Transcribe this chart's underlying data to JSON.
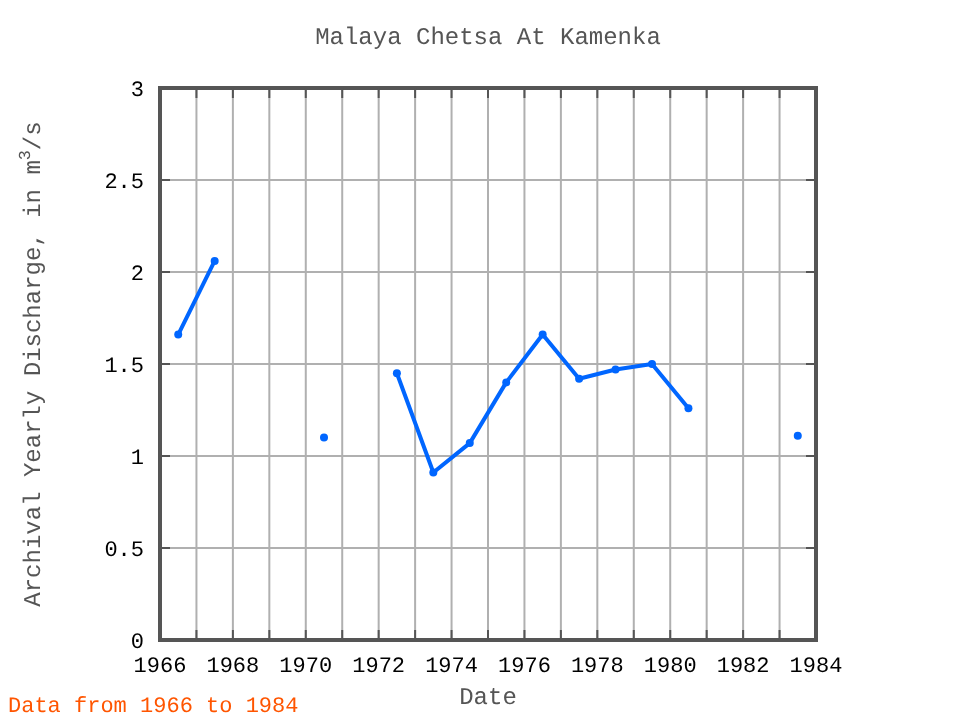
{
  "chart_data": {
    "type": "line",
    "title": "Malaya Chetsa At Kamenka",
    "xlabel": "Date",
    "ylabel": "Archival Yearly Discharge, in m$^{3}$/s",
    "annotations": [
      "Data from 1966 to 1984"
    ],
    "x": [
      1966.5,
      1967.5,
      1968.5,
      1969.5,
      1970.5,
      1971.5,
      1972.5,
      1973.5,
      1974.5,
      1975.5,
      1976.5,
      1977.5,
      1978.5,
      1979.5,
      1980.5,
      1981.5,
      1982.5,
      1983.5
    ],
    "series": [
      {
        "color": "#0066ff",
        "values": [
          1.66,
          2.06,
          null,
          null,
          1.1,
          null,
          1.45,
          0.91,
          1.07,
          1.4,
          1.66,
          1.42,
          1.47,
          1.5,
          1.26,
          null,
          null,
          1.11
        ]
      }
    ],
    "xlim": [
      1966,
      1984
    ],
    "ylim": [
      0,
      3
    ],
    "xticks": [
      1966,
      {
        "value": 1967,
        "label": null
      },
      1968,
      {
        "value": 1969,
        "label": null
      },
      1970,
      {
        "value": 1971,
        "label": null
      },
      1972,
      {
        "value": 1973,
        "label": null
      },
      1974,
      {
        "value": 1975,
        "label": null
      },
      1976,
      {
        "value": 1977,
        "label": null
      },
      1978,
      {
        "value": 1979,
        "label": null
      },
      1980,
      {
        "value": 1981,
        "label": null
      },
      1982,
      {
        "value": 1983,
        "label": null
      },
      1984
    ],
    "yticks": [
      0,
      0.5,
      1,
      1.5,
      2,
      2.5,
      3
    ],
    "grid": true,
    "marker": "circle",
    "line_style": "solid"
  }
}
